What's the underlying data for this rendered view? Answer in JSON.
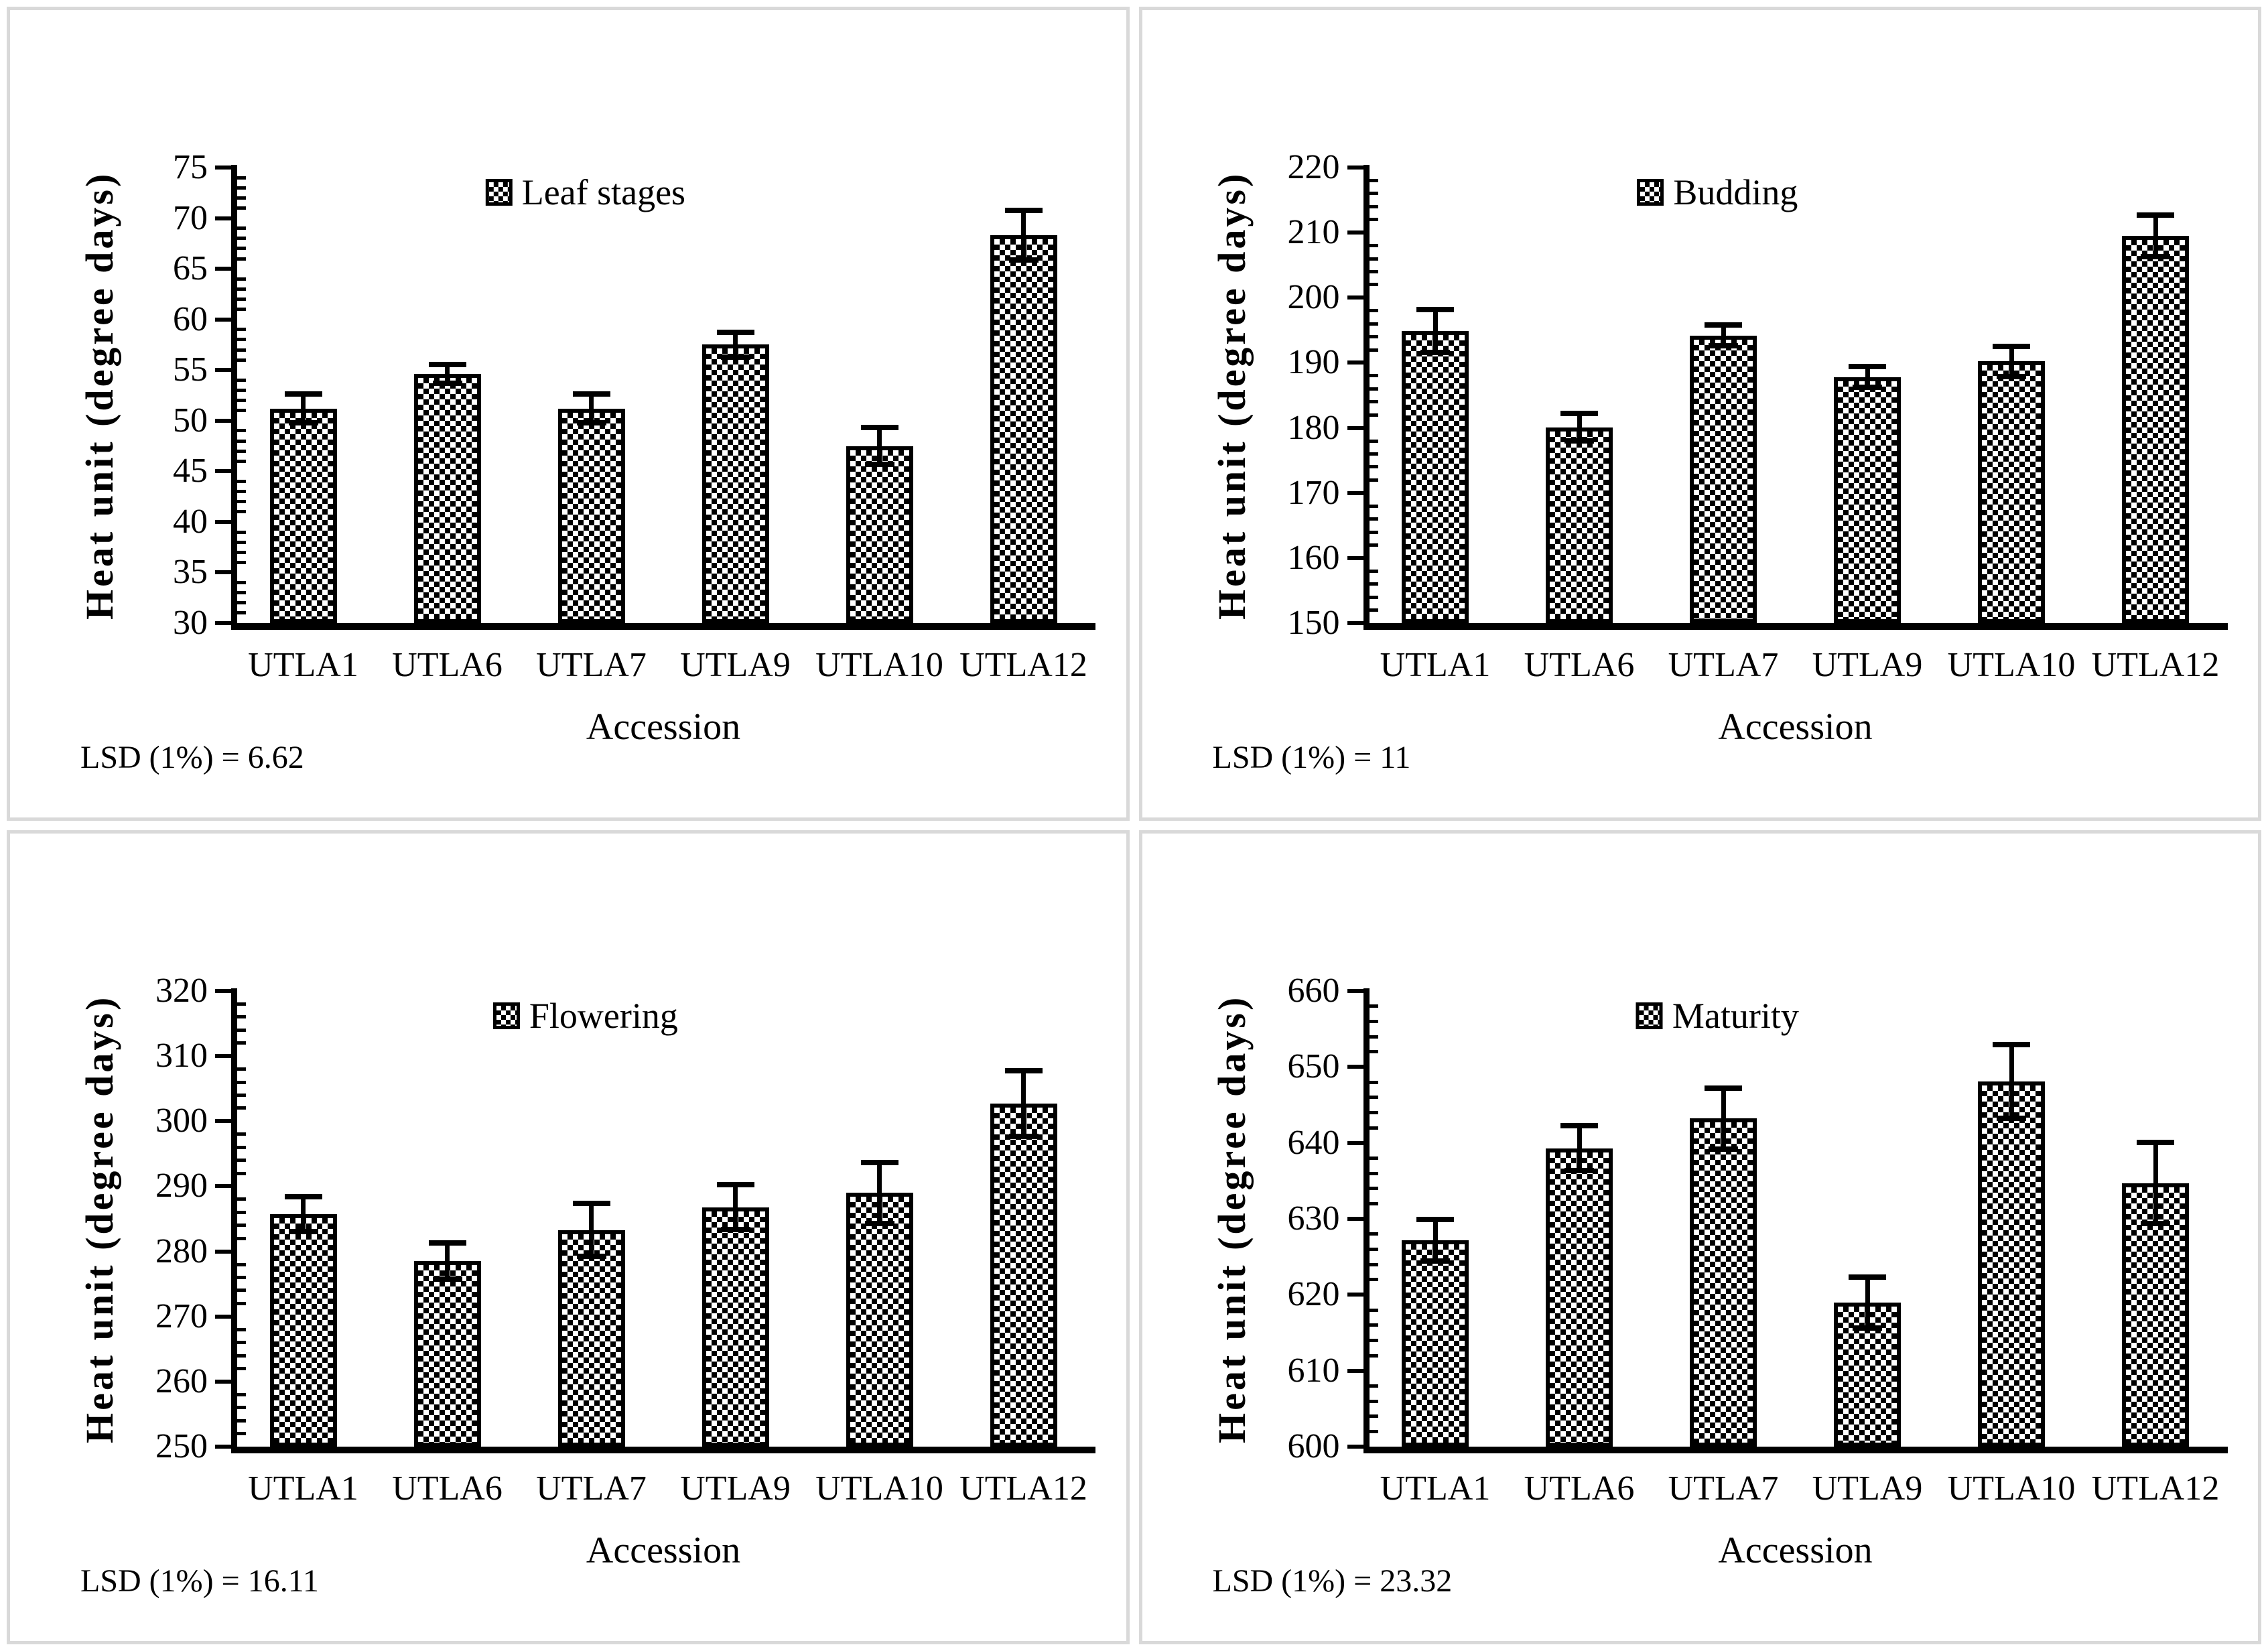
{
  "page": {
    "background": "#ffffff",
    "panel_border_color": "#d9d9d9",
    "ink_color": "#000000",
    "bar_fill": "black-white checkerboard pattern"
  },
  "chart_data": [
    {
      "type": "bar",
      "legend": "Leaf stages",
      "ylabel": "Heat unit (degree days)",
      "xlabel": "Accession",
      "lsd_note": "LSD (1%) = 6.62",
      "categories": [
        "UTLA1",
        "UTLA6",
        "UTLA7",
        "UTLA9",
        "UTLA10",
        "UTLA12"
      ],
      "values": [
        51.2,
        54.6,
        51.2,
        57.5,
        47.5,
        68.3
      ],
      "errors": [
        1.7,
        1.2,
        1.7,
        1.5,
        2.1,
        2.7
      ],
      "ylim": [
        30,
        75
      ],
      "ytick_step": 5,
      "yminor_step": 1,
      "grid": false,
      "legend_position": "top-center"
    },
    {
      "type": "bar",
      "legend": "Budding",
      "ylabel": "Heat unit (degree days)",
      "xlabel": "Accession",
      "lsd_note": "LSD (1%) = 11",
      "categories": [
        "UTLA1",
        "UTLA6",
        "UTLA7",
        "UTLA9",
        "UTLA10",
        "UTLA12"
      ],
      "values": [
        194.9,
        180.1,
        194.2,
        187.8,
        190.2,
        209.5
      ],
      "errors": [
        3.7,
        2.5,
        2.0,
        2.0,
        2.7,
        3.6
      ],
      "ylim": [
        150,
        220
      ],
      "ytick_step": 10,
      "yminor_step": 2,
      "grid": false,
      "legend_position": "top-center"
    },
    {
      "type": "bar",
      "legend": "Flowering",
      "ylabel": "Heat unit (degree days)",
      "xlabel": "Accession",
      "lsd_note": "LSD (1%) = 16.11",
      "categories": [
        "UTLA1",
        "UTLA6",
        "UTLA7",
        "UTLA9",
        "UTLA10",
        "UTLA12"
      ],
      "values": [
        285.7,
        278.5,
        283.3,
        286.8,
        289.0,
        302.7
      ],
      "errors": [
        3.1,
        3.2,
        4.5,
        3.9,
        5.1,
        5.5
      ],
      "ylim": [
        250,
        320
      ],
      "ytick_step": 10,
      "yminor_step": 2,
      "grid": false,
      "legend_position": "top-center"
    },
    {
      "type": "bar",
      "legend": "Maturity",
      "ylabel": "Heat unit (degree days)",
      "xlabel": "Accession",
      "lsd_note": "LSD (1%) = 23.32",
      "categories": [
        "UTLA1",
        "UTLA6",
        "UTLA7",
        "UTLA9",
        "UTLA10",
        "UTLA12"
      ],
      "values": [
        627.2,
        639.3,
        643.2,
        619.0,
        648.1,
        634.7
      ],
      "errors": [
        3.1,
        3.3,
        4.4,
        3.7,
        5.2,
        5.7
      ],
      "ylim": [
        600,
        660
      ],
      "ytick_step": 10,
      "yminor_step": 2,
      "grid": false,
      "legend_position": "top-center"
    }
  ]
}
